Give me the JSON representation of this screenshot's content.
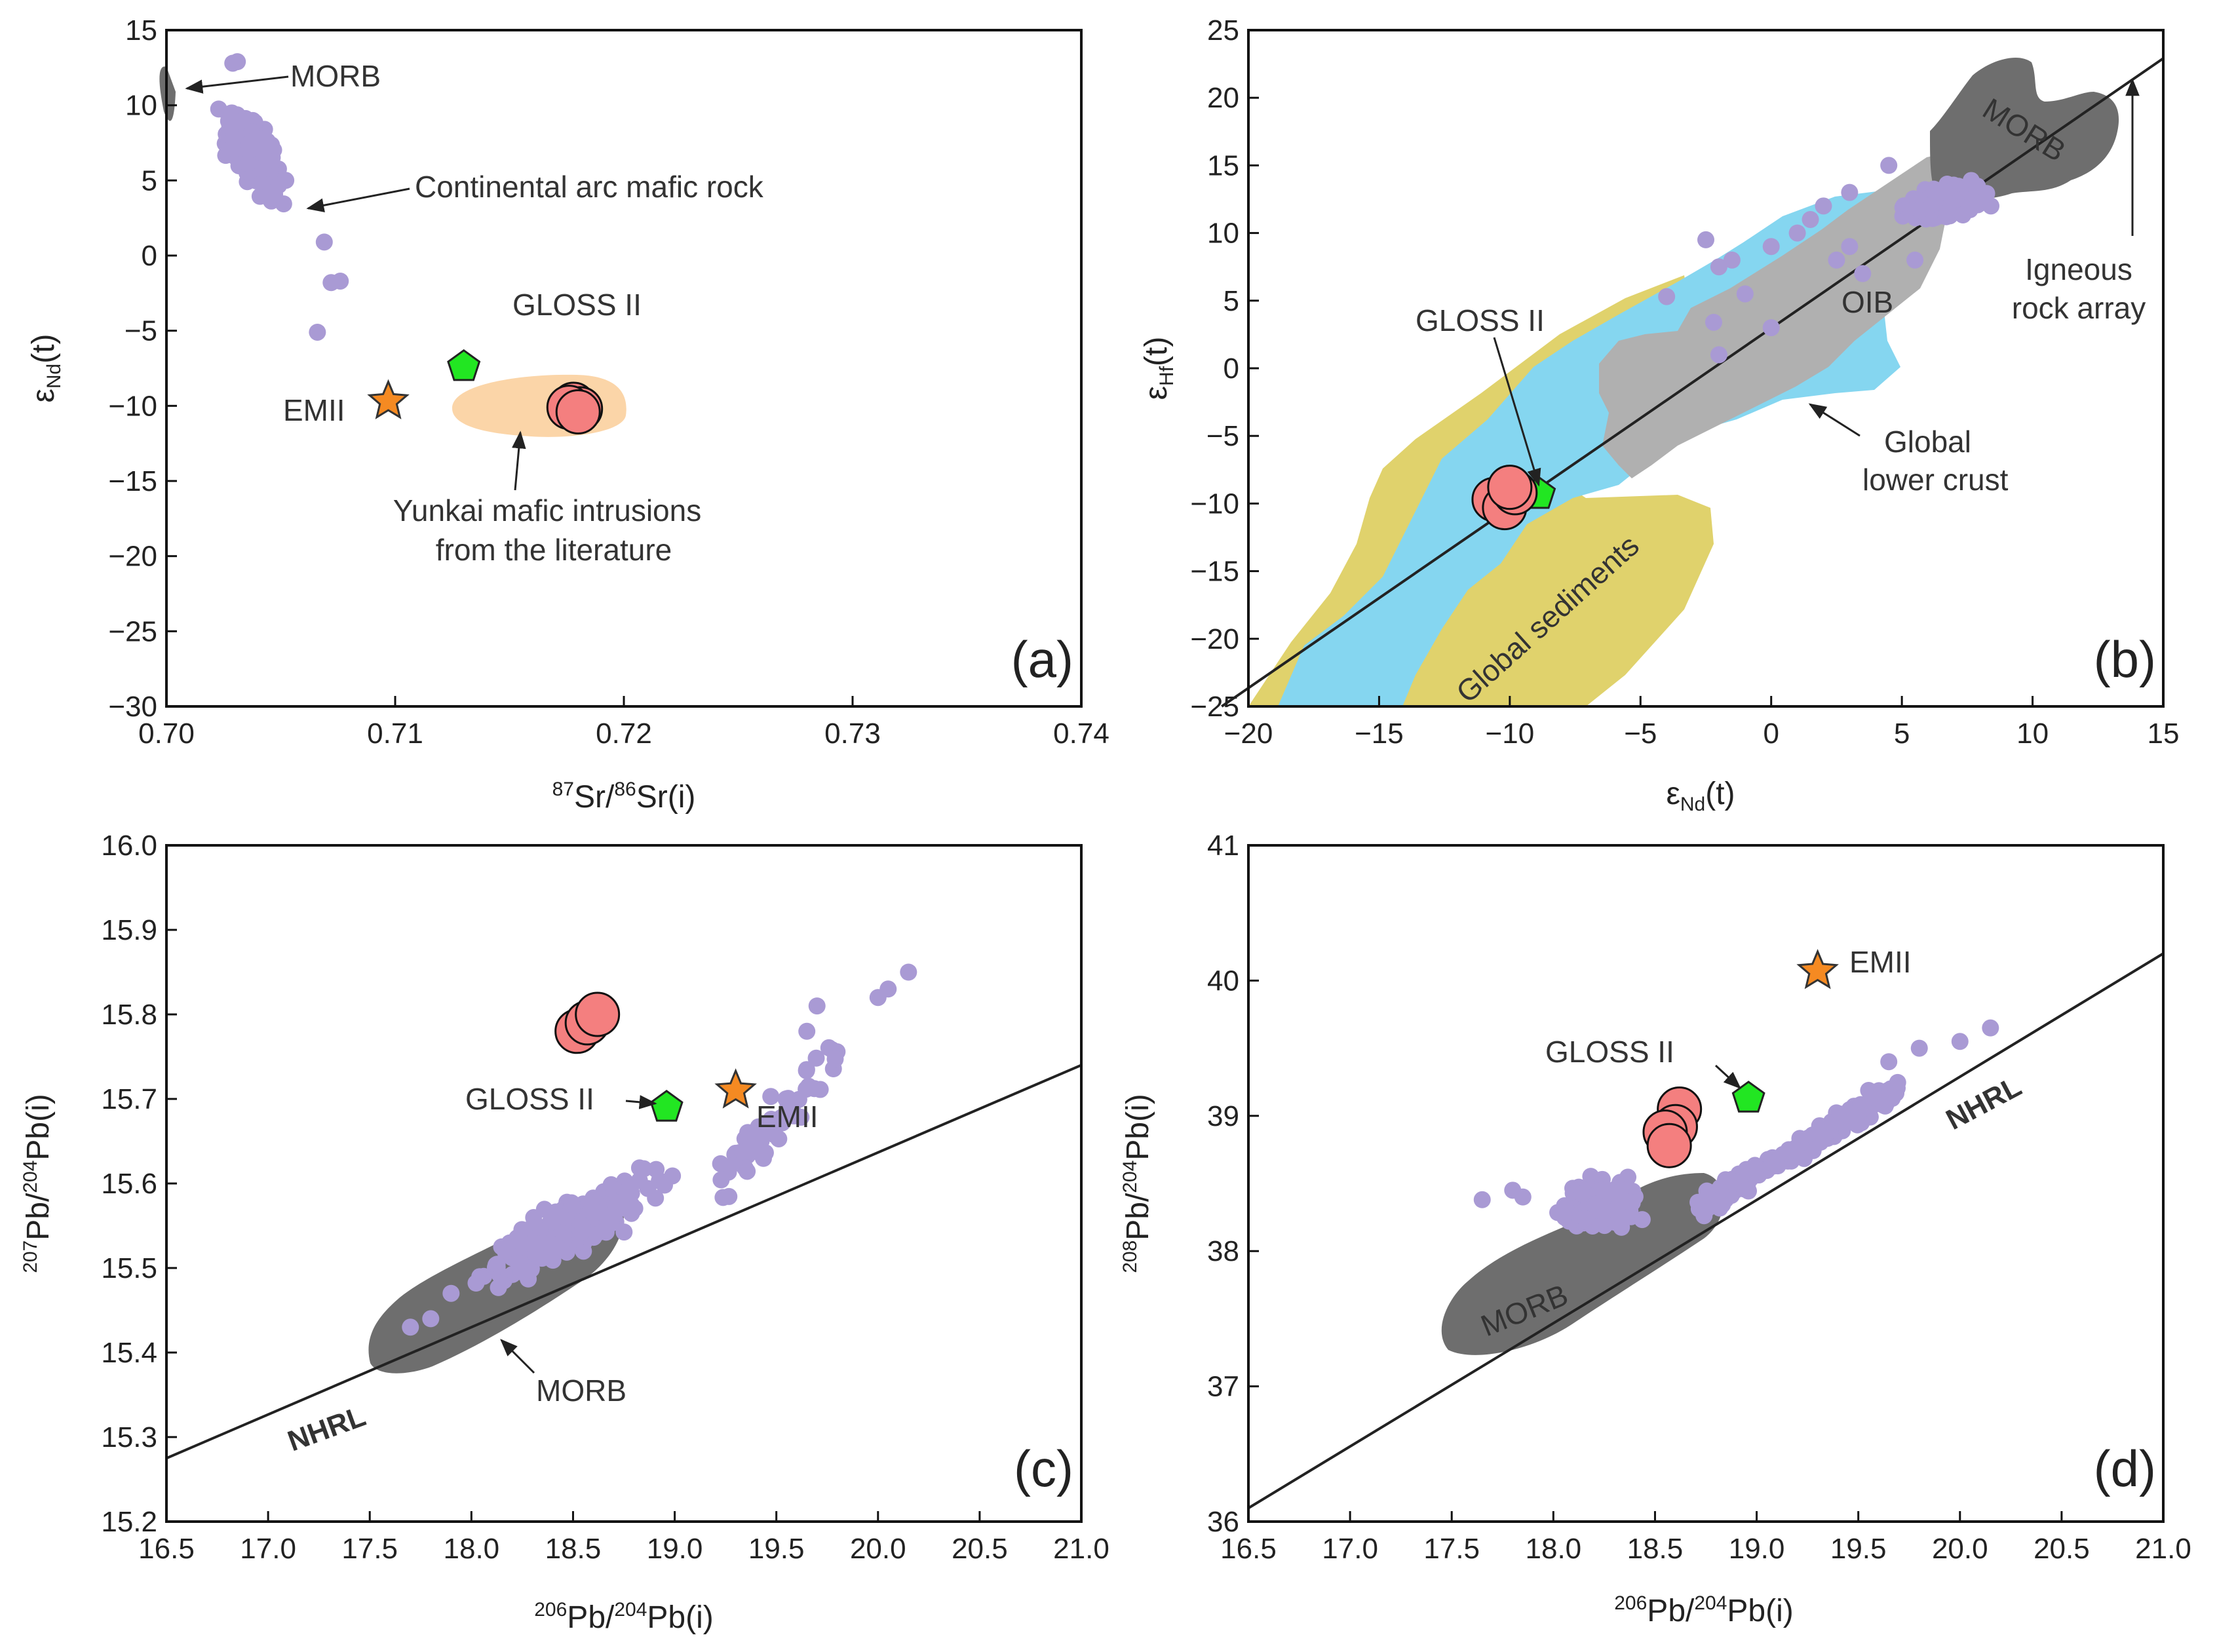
{
  "chart_data": [
    {
      "type": "scatter",
      "panel": "(a)",
      "xlabel_sup1": "87",
      "xlabel_a": "Sr/",
      "xlabel_sup2": "86",
      "xlabel_b": "Sr(i)",
      "ylabel_main": "ε",
      "ylabel_sub": "Nd",
      "ylabel_tail": "(t)",
      "xlim": [
        0.7,
        0.74
      ],
      "ylim": [
        -30,
        15
      ],
      "xticks": [
        "0.70",
        "0.71",
        "0.72",
        "0.73",
        "0.74"
      ],
      "yticks": [
        "15",
        "10",
        "5",
        "0",
        "−5",
        "−10",
        "−15",
        "−20",
        "−25",
        "−30"
      ],
      "annotations": {
        "morb": "MORB",
        "arc": "Continental arc mafic rock",
        "gloss": "GLOSS II",
        "emii": "EMII",
        "yunkai_1": "Yunkai mafic intrusions",
        "yunkai_2": "from the literature"
      },
      "samples": [
        [
          0.7178,
          -9.9
        ],
        [
          0.7181,
          -10.2
        ],
        [
          0.7176,
          -10.1
        ],
        [
          0.718,
          -10.4
        ]
      ],
      "gloss_ii": [
        0.713,
        -7.4
      ],
      "emii": [
        0.7097,
        -9.7
      ]
    },
    {
      "type": "scatter",
      "panel": "(b)",
      "xlabel_main": "ε",
      "xlabel_sub": "Nd",
      "xlabel_tail": "(t)",
      "ylabel_main": "ε",
      "ylabel_sub": "Hf",
      "ylabel_tail": "(t)",
      "xlim": [
        -20,
        15
      ],
      "ylim": [
        -25,
        25
      ],
      "xticks": [
        "−20",
        "−15",
        "−10",
        "−5",
        "0",
        "5",
        "10",
        "15"
      ],
      "yticks": [
        "25",
        "20",
        "15",
        "10",
        "5",
        "0",
        "−5",
        "−10",
        "−15",
        "−20",
        "−25"
      ],
      "annotations": {
        "morb": "MORB",
        "oib": "OIB",
        "gloss": "GLOSS II",
        "igneous_1": "Igneous",
        "igneous_2": "rock array",
        "lower_1": "Global",
        "lower_2": "lower crust",
        "sediments": "Global sediments"
      },
      "samples": [
        [
          -10.6,
          -9.7
        ],
        [
          -10.2,
          -10.3
        ],
        [
          -9.8,
          -9.2
        ],
        [
          -10.0,
          -8.8
        ]
      ],
      "gloss_ii": [
        -8.9,
        -9.3
      ],
      "array_line": {
        "slope": 1.33,
        "intercept": 2.96
      }
    },
    {
      "type": "scatter",
      "panel": "(c)",
      "xlabel_sup": "206",
      "xlabel_a": "Pb/",
      "xlabel_sup2": "204",
      "xlabel_b": "Pb(i)",
      "ylabel_sup": "207",
      "ylabel_a": "Pb/",
      "ylabel_sup2": "204",
      "ylabel_b": "Pb(i)",
      "xlim": [
        16.5,
        21.0
      ],
      "ylim": [
        15.2,
        16.0
      ],
      "xticks": [
        "16.5",
        "17.0",
        "17.5",
        "18.0",
        "18.5",
        "19.0",
        "19.5",
        "20.0",
        "20.5",
        "21.0"
      ],
      "yticks": [
        "16.0",
        "15.9",
        "15.8",
        "15.7",
        "15.6",
        "15.5",
        "15.4",
        "15.3",
        "15.2"
      ],
      "annotations": {
        "gloss": "GLOSS II",
        "emii": "EMII",
        "morb": "MORB",
        "nhrl": "NHRL"
      },
      "samples": [
        [
          18.52,
          15.78
        ],
        [
          18.57,
          15.79
        ],
        [
          18.62,
          15.8
        ]
      ],
      "gloss_ii": [
        18.96,
        15.69
      ],
      "emii": [
        19.3,
        15.71
      ],
      "nhrl": {
        "x": [
          16.5,
          21.0
        ],
        "y": [
          15.275,
          15.74
        ]
      }
    },
    {
      "type": "scatter",
      "panel": "(d)",
      "xlabel_sup": "206",
      "xlabel_a": "Pb/",
      "xlabel_sup2": "204",
      "xlabel_b": "Pb(i)",
      "ylabel_sup": "208",
      "ylabel_a": "Pb/",
      "ylabel_sup2": "204",
      "ylabel_b": "Pb(i)",
      "xlim": [
        16.5,
        21.0
      ],
      "ylim": [
        36,
        41
      ],
      "xticks": [
        "16.5",
        "17.0",
        "17.5",
        "18.0",
        "18.5",
        "19.0",
        "19.5",
        "20.0",
        "20.5",
        "21.0"
      ],
      "yticks": [
        "41",
        "40",
        "39",
        "38",
        "37",
        "36"
      ],
      "annotations": {
        "gloss": "GLOSS II",
        "emii": "EMII",
        "morb": "MORB",
        "nhrl": "NHRL"
      },
      "samples": [
        [
          18.62,
          39.05
        ],
        [
          18.6,
          38.92
        ],
        [
          18.55,
          38.88
        ],
        [
          18.57,
          38.78
        ]
      ],
      "gloss_ii": [
        18.96,
        39.13
      ],
      "emii": [
        19.3,
        40.07
      ],
      "nhrl": {
        "x": [
          16.5,
          21.0
        ],
        "y": [
          36.1,
          40.2
        ]
      }
    }
  ],
  "colors": {
    "sample": "#f47f7f",
    "gloss": "#22e622",
    "emii": "#f58a22",
    "arc": "#a99ad4",
    "morb": "#6e6e6e",
    "oib": "#b0b0b0",
    "lower_crust": "#85d6f0",
    "sediments": "#e0d26c",
    "yunkai": "#fbd5a8"
  }
}
